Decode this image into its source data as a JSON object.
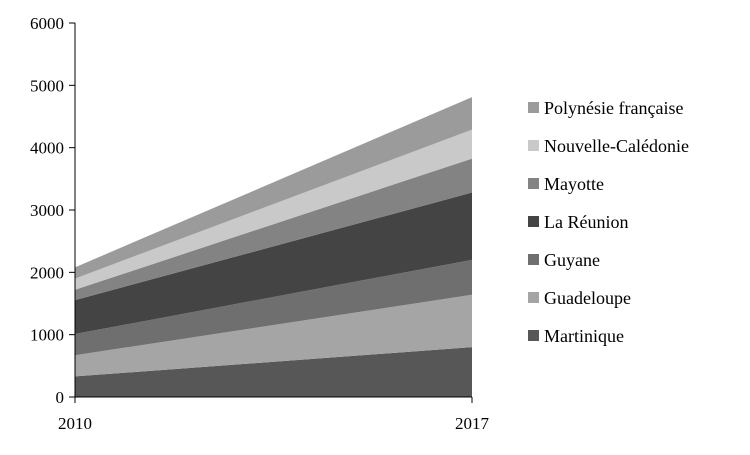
{
  "chart_data": {
    "type": "area",
    "stacked": true,
    "x": [
      "2010",
      "2017"
    ],
    "ylim": [
      0,
      6000
    ],
    "yticks": [
      0,
      1000,
      2000,
      3000,
      4000,
      5000,
      6000
    ],
    "grid": false,
    "legend_position": "right",
    "series": [
      {
        "name": "Martinique",
        "values": [
          330,
          800
        ],
        "color": "#575757"
      },
      {
        "name": "Guadeloupe",
        "values": [
          340,
          840
        ],
        "color": "#a5a5a5"
      },
      {
        "name": "Guyane",
        "values": [
          340,
          560
        ],
        "color": "#6f6f6f"
      },
      {
        "name": "La Réunion",
        "values": [
          545,
          1080
        ],
        "color": "#444444"
      },
      {
        "name": "Mayotte",
        "values": [
          165,
          545
        ],
        "color": "#838383"
      },
      {
        "name": "Nouvelle-Calédonie",
        "values": [
          180,
          465
        ],
        "color": "#c9c9c9"
      },
      {
        "name": "Polynésie française",
        "values": [
          180,
          520
        ],
        "color": "#9b9b9b"
      }
    ]
  }
}
